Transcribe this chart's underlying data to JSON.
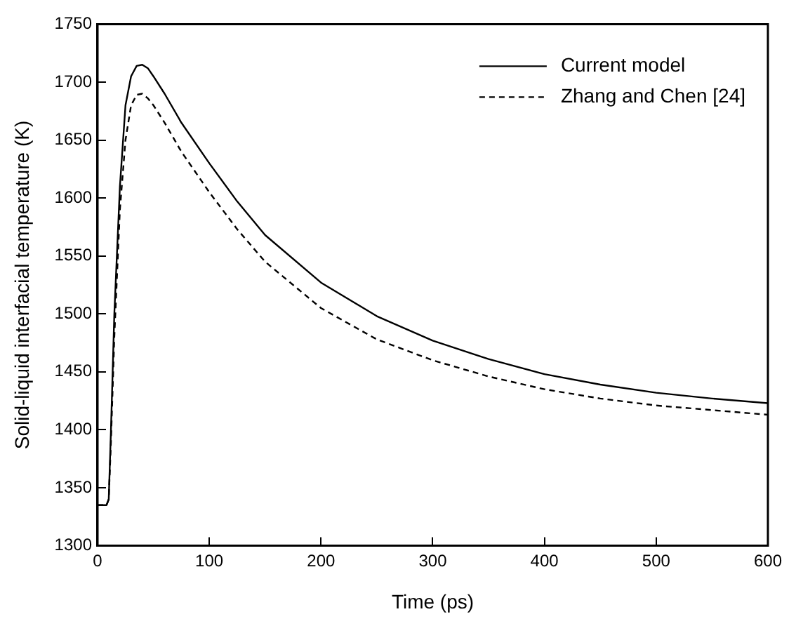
{
  "chart_data": {
    "type": "line",
    "xlabel": "Time (ps)",
    "ylabel": "Solid-liquid interfacial temperature (K)",
    "xlim": [
      0,
      600
    ],
    "xticks": [
      0,
      100,
      200,
      300,
      400,
      500,
      600
    ],
    "ylim": [
      1300,
      1750
    ],
    "yticks": [
      1300,
      1350,
      1400,
      1450,
      1500,
      1550,
      1600,
      1650,
      1700,
      1750
    ],
    "grid": false,
    "legend": "top right",
    "marker": "none",
    "series": [
      {
        "name": "Current model",
        "color": "#000000",
        "line_style": "solid",
        "x": [
          0,
          8,
          10,
          12,
          15,
          20,
          25,
          30,
          35,
          40,
          45,
          50,
          60,
          75,
          100,
          125,
          150,
          200,
          250,
          300,
          350,
          400,
          450,
          500,
          550,
          600
        ],
        "values": [
          1335,
          1335,
          1340,
          1400,
          1500,
          1610,
          1680,
          1705,
          1714,
          1715,
          1712,
          1705,
          1690,
          1665,
          1630,
          1597,
          1568,
          1527,
          1498,
          1477,
          1461,
          1448,
          1439,
          1432,
          1427,
          1423
        ]
      },
      {
        "name": "Zhang and Chen [24]",
        "color": "#000000",
        "line_style": "dashed",
        "x": [
          0,
          8,
          10,
          12,
          15,
          20,
          25,
          30,
          35,
          40,
          45,
          50,
          60,
          75,
          100,
          125,
          150,
          200,
          250,
          300,
          350,
          400,
          450,
          500,
          550,
          600
        ],
        "values": [
          1335,
          1335,
          1340,
          1390,
          1480,
          1590,
          1650,
          1680,
          1689,
          1690,
          1686,
          1680,
          1665,
          1640,
          1605,
          1573,
          1545,
          1505,
          1478,
          1460,
          1446,
          1435,
          1427,
          1421,
          1417,
          1413
        ]
      }
    ]
  }
}
